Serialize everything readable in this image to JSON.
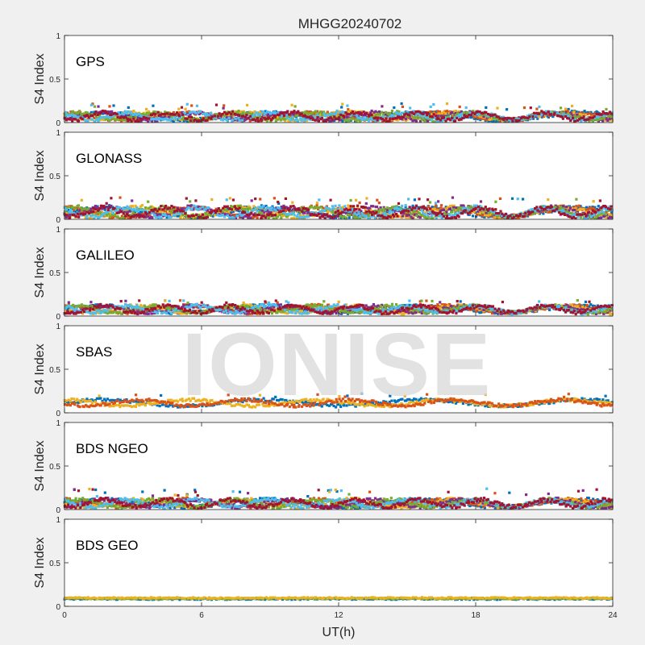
{
  "chart_data": {
    "type": "scatter",
    "title": "MHGG20240702",
    "xlabel": "UT(h)",
    "ylabel": "S4 Index",
    "xlim": [
      0,
      24
    ],
    "ylim": [
      0,
      1
    ],
    "x_ticks": [
      "0",
      "6",
      "12",
      "18",
      "24"
    ],
    "y_ticks": [
      "0",
      "0.5",
      "1"
    ],
    "watermark": "IONISE",
    "series_colors": [
      "#0072BD",
      "#D95319",
      "#EDB120",
      "#7E2F8E",
      "#77AC30",
      "#4DBEEE",
      "#A2142F"
    ],
    "panels": [
      {
        "label": "GPS",
        "typical_range": [
          0.03,
          0.15
        ],
        "peak": 0.22,
        "mean_level": 0.08
      },
      {
        "label": "GLONASS",
        "typical_range": [
          0.03,
          0.18
        ],
        "peak": 0.25,
        "mean_level": 0.09
      },
      {
        "label": "GALILEO",
        "typical_range": [
          0.04,
          0.15
        ],
        "peak": 0.18,
        "mean_level": 0.09
      },
      {
        "label": "SBAS",
        "typical_range": [
          0.08,
          0.18
        ],
        "peak": 0.22,
        "mean_level": 0.12
      },
      {
        "label": "BDS NGEO",
        "typical_range": [
          0.03,
          0.15
        ],
        "peak": 0.24,
        "mean_level": 0.08
      },
      {
        "label": "BDS GEO",
        "typical_range": [
          0.07,
          0.12
        ],
        "peak": 0.13,
        "mean_level": 0.09
      }
    ]
  }
}
